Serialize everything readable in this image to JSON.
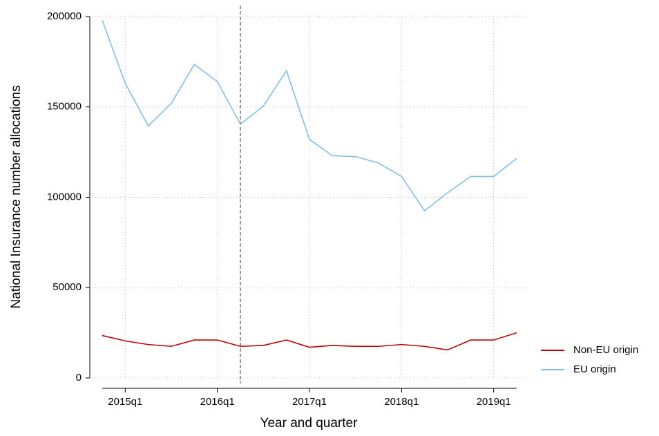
{
  "chart_data": {
    "type": "line",
    "x_label": "Year and quarter",
    "y_label": "National Insurance number allocations",
    "categories": [
      null,
      "2015q1",
      null,
      null,
      null,
      "2016q1",
      null,
      null,
      null,
      "2017q1",
      null,
      null,
      null,
      "2018q1",
      null,
      null,
      null,
      "2019q1",
      null
    ],
    "series": [
      {
        "name": "Non-EU origin",
        "color": "#c00000",
        "values": [
          23500,
          20500,
          18500,
          17500,
          21000,
          21000,
          17500,
          18000,
          21000,
          17000,
          18000,
          17500,
          17500,
          18500,
          17500,
          15500,
          21000,
          21000,
          25000
        ]
      },
      {
        "name": "EU origin",
        "color": "#80bfe3",
        "values": [
          198000,
          163000,
          139500,
          152000,
          173500,
          164000,
          140500,
          150500,
          170000,
          132000,
          123000,
          122500,
          119000,
          111500,
          92500,
          102500,
          111500,
          111500,
          121500
        ]
      }
    ],
    "ylim": [
      0,
      200000
    ],
    "yticks": [
      0,
      50000,
      100000,
      150000,
      200000
    ],
    "grid": true,
    "vline_index": 6,
    "legend": "right"
  }
}
